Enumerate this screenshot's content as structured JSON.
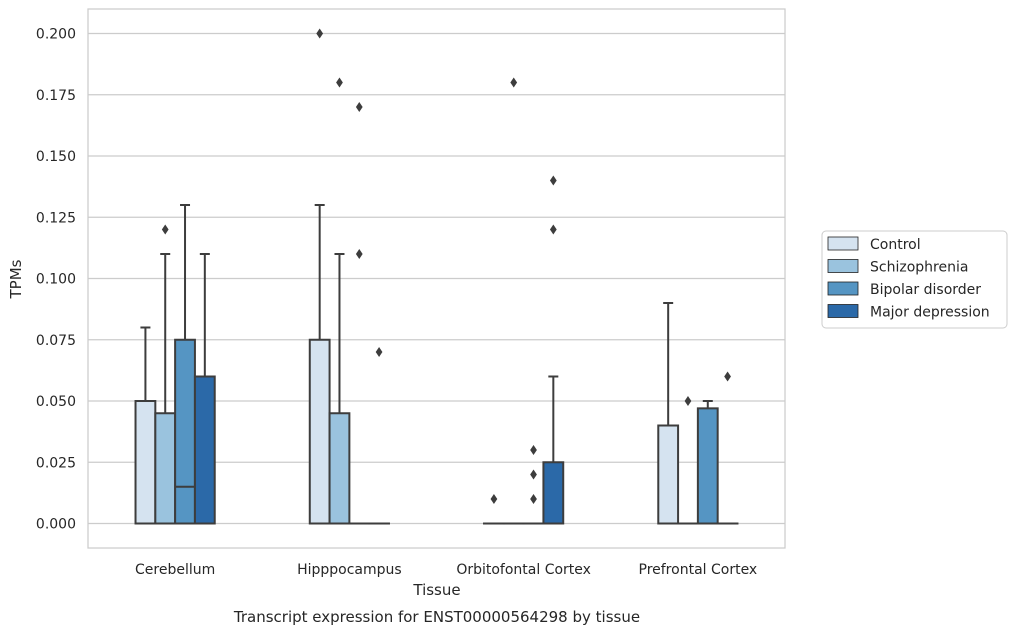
{
  "chart_data": {
    "type": "box",
    "caption": "Transcript expression for ENST00000564298 by tissue",
    "xlabel": "Tissue",
    "ylabel": "TPMs",
    "ylim": [
      -0.01,
      0.21
    ],
    "yticks": [
      "0.000",
      "0.025",
      "0.050",
      "0.075",
      "0.100",
      "0.125",
      "0.150",
      "0.175",
      "0.200"
    ],
    "ytick_values": [
      0,
      0.025,
      0.05,
      0.075,
      0.1,
      0.125,
      0.15,
      0.175,
      0.2
    ],
    "categories": [
      "Cerebellum",
      "Hipppocampus",
      "Orbitofontal Cortex",
      "Prefrontal Cortex"
    ],
    "grid": true,
    "legend_position": "right",
    "series": [
      {
        "name": "Control",
        "color": "#d5e3f0",
        "boxes": [
          {
            "q1": 0,
            "median": 0,
            "q3": 0.05,
            "whisker_low": 0,
            "whisker_high": 0.08,
            "outliers": []
          },
          {
            "q1": 0,
            "median": 0,
            "q3": 0.075,
            "whisker_low": 0,
            "whisker_high": 0.13,
            "outliers": [
              0.2
            ]
          },
          {
            "q1": 0,
            "median": 0,
            "q3": 0,
            "whisker_low": 0,
            "whisker_high": 0,
            "outliers": [
              0.01
            ]
          },
          {
            "q1": 0,
            "median": 0,
            "q3": 0.04,
            "whisker_low": 0,
            "whisker_high": 0.09,
            "outliers": []
          }
        ]
      },
      {
        "name": "Schizophrenia",
        "color": "#9ac3de",
        "boxes": [
          {
            "q1": 0,
            "median": 0,
            "q3": 0.045,
            "whisker_low": 0,
            "whisker_high": 0.11,
            "outliers": [
              0.12
            ]
          },
          {
            "q1": 0,
            "median": 0,
            "q3": 0.045,
            "whisker_low": 0,
            "whisker_high": 0.11,
            "outliers": [
              0.18
            ]
          },
          {
            "q1": 0,
            "median": 0,
            "q3": 0,
            "whisker_low": 0,
            "whisker_high": 0,
            "outliers": [
              0.18
            ]
          },
          {
            "q1": 0,
            "median": 0,
            "q3": 0,
            "whisker_low": 0,
            "whisker_high": 0,
            "outliers": [
              0.05
            ]
          }
        ]
      },
      {
        "name": "Bipolar disorder",
        "color": "#5595c3",
        "boxes": [
          {
            "q1": 0,
            "median": 0.015,
            "q3": 0.075,
            "whisker_low": 0,
            "whisker_high": 0.13,
            "outliers": []
          },
          {
            "q1": 0,
            "median": 0,
            "q3": 0,
            "whisker_low": 0,
            "whisker_high": 0,
            "outliers": [
              0.17,
              0.11
            ]
          },
          {
            "q1": 0,
            "median": 0,
            "q3": 0,
            "whisker_low": 0,
            "whisker_high": 0,
            "outliers": [
              0.03,
              0.02,
              0.01
            ]
          },
          {
            "q1": 0,
            "median": 0,
            "q3": 0.047,
            "whisker_low": 0,
            "whisker_high": 0.05,
            "outliers": []
          }
        ]
      },
      {
        "name": "Major depression",
        "color": "#2b69a8",
        "boxes": [
          {
            "q1": 0,
            "median": 0,
            "q3": 0.06,
            "whisker_low": 0,
            "whisker_high": 0.11,
            "outliers": []
          },
          {
            "q1": 0,
            "median": 0,
            "q3": 0,
            "whisker_low": 0,
            "whisker_high": 0,
            "outliers": [
              0.07
            ]
          },
          {
            "q1": 0,
            "median": 0,
            "q3": 0.025,
            "whisker_low": 0,
            "whisker_high": 0.06,
            "outliers": [
              0.14,
              0.12
            ]
          },
          {
            "q1": 0,
            "median": 0,
            "q3": 0,
            "whisker_low": 0,
            "whisker_high": 0,
            "outliers": [
              0.06
            ]
          }
        ]
      }
    ]
  }
}
